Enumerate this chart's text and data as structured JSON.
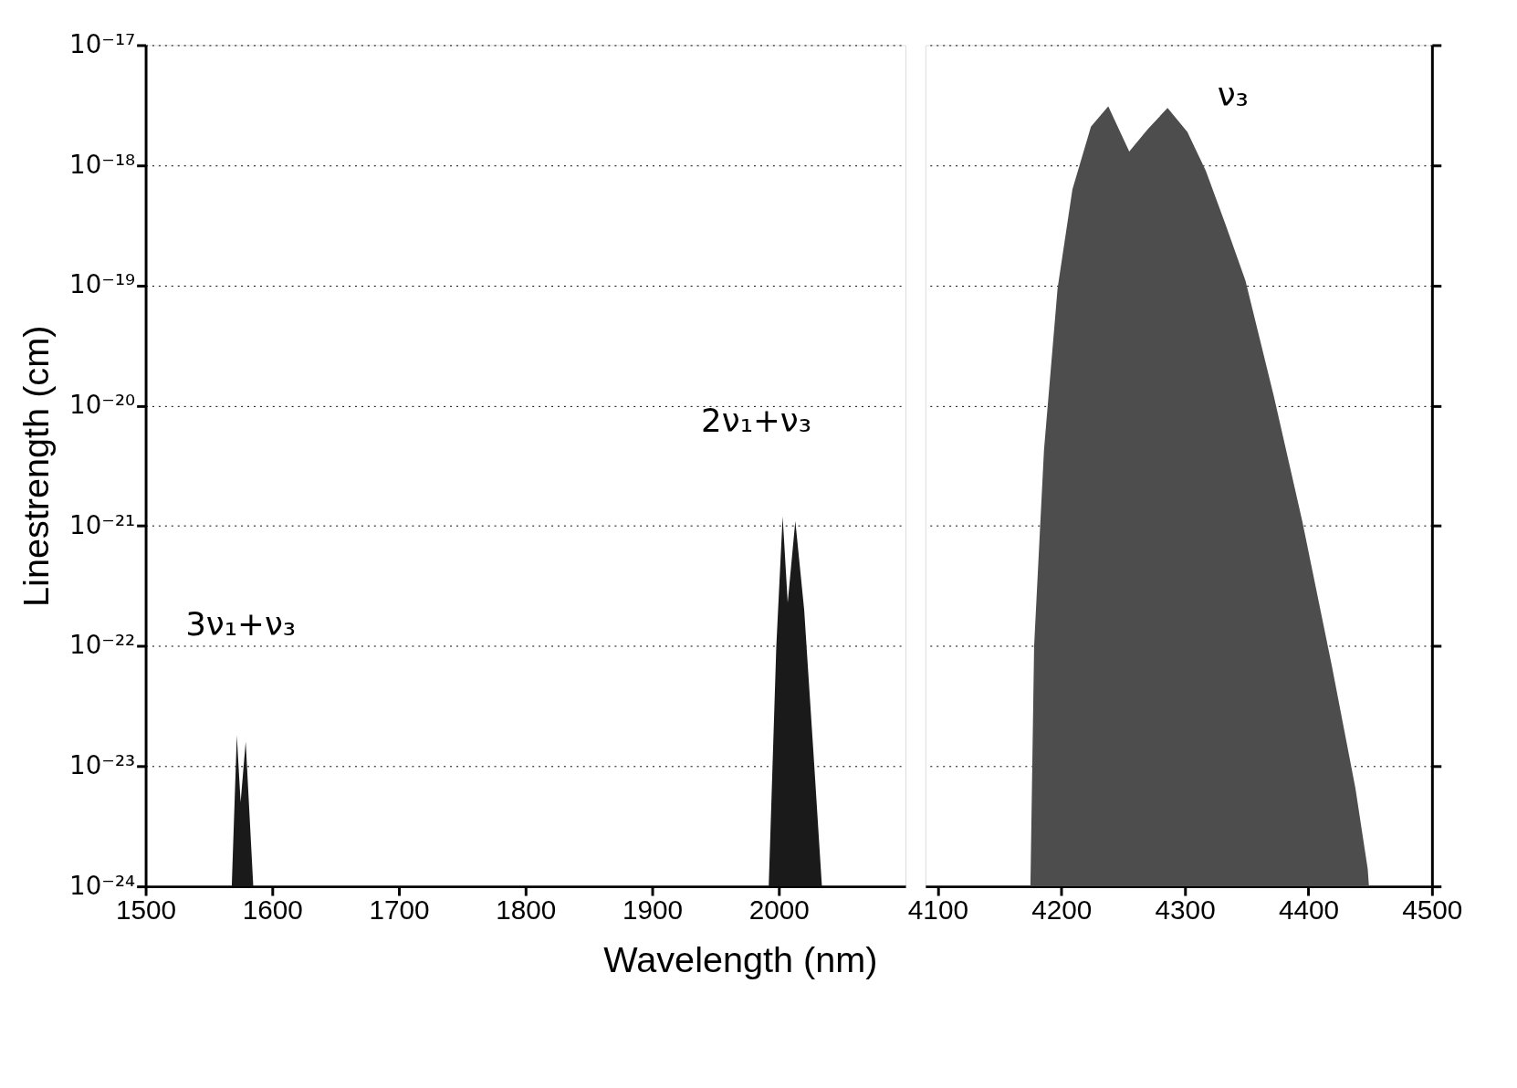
{
  "chart_data": [
    {
      "type": "area",
      "xlabel": "Wavelength (nm)",
      "ylabel": "Linestrength (cm)",
      "log": "y",
      "grid": "y",
      "xlim": [
        1500,
        2100
      ],
      "xticks": [
        1500,
        1600,
        1700,
        1800,
        1900,
        2000
      ],
      "ylim": [
        1e-24,
        1e-17
      ],
      "yticks": [
        {
          "value": 1e-24,
          "label": "10⁻²⁴"
        },
        {
          "value": 1e-23,
          "label": "10⁻²³"
        },
        {
          "value": 1e-22,
          "label": "10⁻²²"
        },
        {
          "value": 1e-21,
          "label": "10⁻²¹"
        },
        {
          "value": 1e-20,
          "label": "10⁻²⁰"
        },
        {
          "value": 1e-19,
          "label": "10⁻¹⁹"
        },
        {
          "value": 1e-18,
          "label": "10⁻¹⁸"
        },
        {
          "value": 1e-17,
          "label": "10⁻¹⁷"
        }
      ],
      "series": [
        {
          "color": "#1a1a1a",
          "x": [
            1568,
            1572,
            1575,
            1579,
            1585
          ],
          "values": [
            1e-24,
            1.8e-23,
            5e-24,
            1.6e-23,
            1e-24
          ]
        },
        {
          "color": "#1a1a1a",
          "x": [
            1992,
            1998,
            2003,
            2007,
            2013,
            2020,
            2028,
            2034
          ],
          "values": [
            1e-24,
            1e-22,
            1.2e-21,
            2.3e-22,
            1.1e-21,
            2e-22,
            1e-23,
            1e-24
          ]
        }
      ],
      "annotations": [
        "3ν₁+ν₃",
        "2ν₁+ν₃"
      ]
    },
    {
      "type": "area",
      "log": "y",
      "grid": "y",
      "tick_labels": "x",
      "xlim": [
        4090,
        4500
      ],
      "xticks": [
        4100,
        4200,
        4300,
        4400,
        4500
      ],
      "ylim": [
        1e-24,
        1e-17
      ],
      "yticks": [
        1e-24,
        1e-23,
        1e-22,
        1e-21,
        1e-20,
        1e-19,
        1e-18,
        1e-17
      ],
      "series": [
        {
          "color": "#4d4d4d",
          "x": [
            4175,
            4178,
            4186,
            4197,
            4209,
            4224,
            4238,
            4255,
            4270,
            4286,
            4302,
            4317,
            4333,
            4349,
            4372,
            4395,
            4419,
            4438,
            4448,
            4449
          ],
          "values": [
            1e-24,
            1e-22,
            4.3e-21,
            9.5e-20,
            6.3e-19,
            2.1e-18,
            3.1e-18,
            1.3e-18,
            2e-18,
            3e-18,
            1.9e-18,
            9e-19,
            3.2e-19,
            1.1e-19,
            1.2e-20,
            1.1e-21,
            6.8e-23,
            6.6e-24,
            1.4e-24,
            1e-24
          ]
        }
      ],
      "annotations": [
        "ν₃"
      ]
    }
  ]
}
